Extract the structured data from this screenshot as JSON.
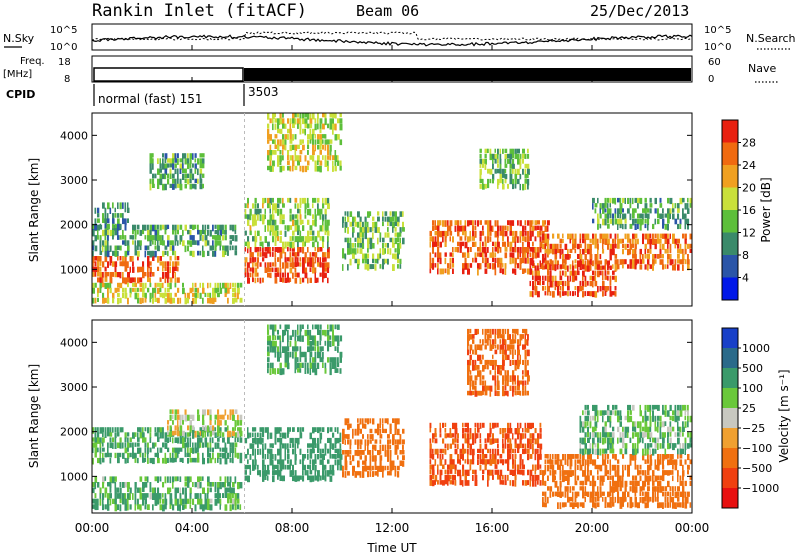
{
  "header": {
    "site": "Rankin Inlet (fitACF)",
    "beam": "Beam 06",
    "date": "25/Dec/2013"
  },
  "top_panels": {
    "nsky_label": "N.Sky",
    "nsky_ticks": [
      "10^5",
      "10^0"
    ],
    "nsearch_label": "N.Search",
    "nsearch_ticks": [
      "10^5",
      "10^0"
    ],
    "freq_label_1": "Freq.",
    "freq_label_2": "[MHz]",
    "freq_ticks": [
      "18",
      "8"
    ],
    "nave_label": "Nave",
    "nave_ticks": [
      "60",
      "0"
    ],
    "cpid_label": "CPID",
    "cpid_segments": [
      {
        "label": "normal (fast) 151",
        "start_hour": 0.0,
        "end_hour": 6.1
      },
      {
        "label": "3503",
        "start_hour": 6.1,
        "end_hour": 24.0
      }
    ]
  },
  "axes": {
    "time_ticks": [
      "00:00",
      "04:00",
      "08:00",
      "12:00",
      "16:00",
      "20:00",
      "00:00"
    ],
    "time_tick_hours": [
      0,
      4,
      8,
      12,
      16,
      20,
      24
    ],
    "xlabel": "Time UT",
    "ylabel": "Slant Range [km]",
    "range_ticks": [
      "1000",
      "2000",
      "3000",
      "4000"
    ],
    "range_tick_values": [
      1000,
      2000,
      3000,
      4000
    ],
    "range_min_km": 180,
    "range_max_km": 4500
  },
  "chart_data": [
    {
      "type": "heatmap",
      "name": "power",
      "colorbar_label": "Power [dB]",
      "colorbar_ticks": [
        "28",
        "24",
        "20",
        "16",
        "12",
        "8",
        "4"
      ],
      "colorbar_tick_values": [
        28,
        24,
        20,
        16,
        12,
        8,
        4
      ],
      "colorbar_range": [
        0,
        32
      ],
      "colors": [
        "#0018e8",
        "#2a55a8",
        "#3a8a6a",
        "#5dbf3a",
        "#c9e03a",
        "#f0a020",
        "#f06a10",
        "#e82010"
      ],
      "regions": [
        {
          "t0": 0.0,
          "t1": 3.5,
          "r0": 700,
          "r1": 1300,
          "power": 26
        },
        {
          "t0": 0.0,
          "t1": 5.8,
          "r0": 1300,
          "r1": 2000,
          "power": 12
        },
        {
          "t0": 0.0,
          "t1": 1.5,
          "r0": 1900,
          "r1": 2500,
          "power": 10
        },
        {
          "t0": 0.0,
          "t1": 6.0,
          "r0": 250,
          "r1": 700,
          "power": 18
        },
        {
          "t0": 2.3,
          "t1": 4.5,
          "r0": 2800,
          "r1": 3600,
          "power": 12
        },
        {
          "t0": 6.1,
          "t1": 9.5,
          "r0": 700,
          "r1": 1500,
          "power": 28
        },
        {
          "t0": 6.1,
          "t1": 9.5,
          "r0": 1500,
          "r1": 2600,
          "power": 16
        },
        {
          "t0": 7.0,
          "t1": 10.0,
          "r0": 3200,
          "r1": 4500,
          "power": 18
        },
        {
          "t0": 10.0,
          "t1": 12.5,
          "r0": 1000,
          "r1": 2300,
          "power": 14
        },
        {
          "t0": 13.5,
          "t1": 18.3,
          "r0": 900,
          "r1": 2100,
          "power": 27
        },
        {
          "t0": 15.5,
          "t1": 17.5,
          "r0": 2800,
          "r1": 3700,
          "power": 14
        },
        {
          "t0": 17.5,
          "t1": 21.0,
          "r0": 400,
          "r1": 1200,
          "power": 28
        },
        {
          "t0": 18.0,
          "t1": 24.0,
          "r0": 1000,
          "r1": 1800,
          "power": 26
        },
        {
          "t0": 20.0,
          "t1": 24.0,
          "r0": 1900,
          "r1": 2600,
          "power": 12
        }
      ]
    },
    {
      "type": "heatmap",
      "name": "velocity",
      "colorbar_label": "Velocity [m s⁻¹]",
      "colorbar_ticks": [
        "1000",
        "500",
        "100",
        "25",
        "−25",
        "−100",
        "−500",
        "−1000"
      ],
      "colorbar_tick_values": [
        1000,
        500,
        100,
        25,
        -25,
        -100,
        -500,
        -1000
      ],
      "colors": [
        "#1840c8",
        "#2a6a8a",
        "#3a9a6a",
        "#6ac83a",
        "#c8c8c0",
        "#f0a030",
        "#f07010",
        "#f04010",
        "#e81010"
      ],
      "regions": [
        {
          "t0": 0.0,
          "t1": 6.0,
          "r0": 1300,
          "r1": 2100,
          "velocity": 150
        },
        {
          "t0": 3.0,
          "t1": 6.0,
          "r0": 1900,
          "r1": 2500,
          "velocity": 0
        },
        {
          "t0": 0.0,
          "t1": 6.0,
          "r0": 250,
          "r1": 1000,
          "velocity": 120
        },
        {
          "t0": 6.1,
          "t1": 10.0,
          "r0": 900,
          "r1": 2100,
          "velocity": 200
        },
        {
          "t0": 7.0,
          "t1": 10.0,
          "r0": 3300,
          "r1": 4400,
          "velocity": 150
        },
        {
          "t0": 10.0,
          "t1": 12.5,
          "r0": 1000,
          "r1": 2300,
          "velocity": -300
        },
        {
          "t0": 13.5,
          "t1": 18.0,
          "r0": 800,
          "r1": 2200,
          "velocity": -600
        },
        {
          "t0": 15.0,
          "t1": 17.5,
          "r0": 2800,
          "r1": 4300,
          "velocity": -400
        },
        {
          "t0": 18.0,
          "t1": 24.0,
          "r0": 300,
          "r1": 1500,
          "velocity": -200
        },
        {
          "t0": 19.5,
          "t1": 24.0,
          "r0": 1500,
          "r1": 2600,
          "velocity": 100
        }
      ]
    }
  ]
}
